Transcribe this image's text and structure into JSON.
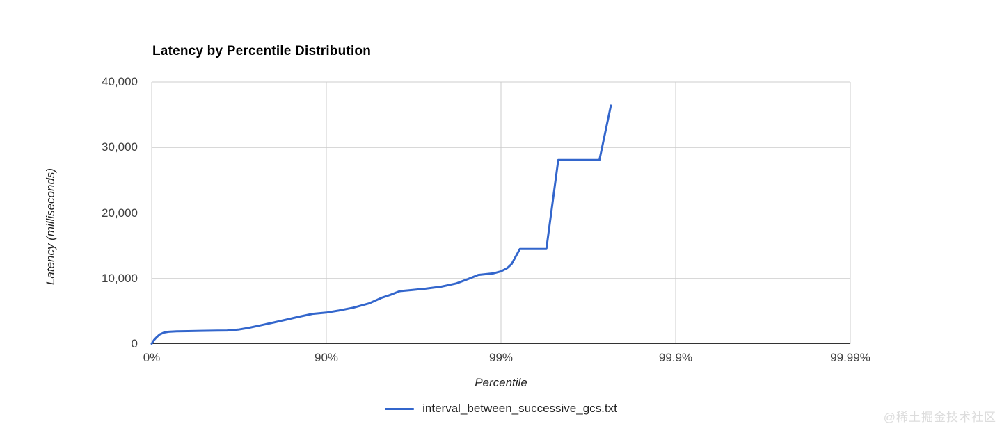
{
  "watermark": "@稀土掘金技术社区",
  "colors": {
    "background": "#ffffff",
    "gridline": "#cccccc",
    "axis_line": "#333333",
    "tick_text": "#3f3f3f",
    "series_blue": "#3366CC",
    "watermark_gray": "#dcdcdc"
  },
  "chart_data": {
    "type": "line",
    "title": "Latency by Percentile Distribution",
    "xlabel": "Percentile",
    "ylabel": "Latency (milliseconds)",
    "x_scale": "hdr-percentile-log: x = log10(1/(1-p)), 4 decades",
    "x_ticks": [
      "0%",
      "90%",
      "99%",
      "99.9%",
      "99.99%"
    ],
    "y_ticks": [
      0,
      10000,
      20000,
      30000,
      40000
    ],
    "y_tick_labels": [
      "0",
      "10,000",
      "20,000",
      "30,000",
      "40,000"
    ],
    "ylim": [
      0,
      40000
    ],
    "grid": true,
    "legend_position": "bottom",
    "series": [
      {
        "name": "interval_between_successive_gcs.txt",
        "color": "#3366CC",
        "points": [
          [
            0,
            50
          ],
          [
            3,
            600
          ],
          [
            6,
            1000
          ],
          [
            10,
            1450
          ],
          [
            15,
            1750
          ],
          [
            20,
            1870
          ],
          [
            28,
            1930
          ],
          [
            38,
            1960
          ],
          [
            48,
            2010
          ],
          [
            58,
            2040
          ],
          [
            63,
            2060
          ],
          [
            68,
            2200
          ],
          [
            72,
            2450
          ],
          [
            76,
            2830
          ],
          [
            80,
            3290
          ],
          [
            83,
            3710
          ],
          [
            85.5,
            4140
          ],
          [
            88,
            4600
          ],
          [
            90,
            4800
          ],
          [
            91.5,
            5100
          ],
          [
            93,
            5550
          ],
          [
            94.3,
            6200
          ],
          [
            95.2,
            7075
          ],
          [
            95.7,
            7500
          ],
          [
            96.2,
            8060
          ],
          [
            96.8,
            8250
          ],
          [
            97.3,
            8450
          ],
          [
            97.8,
            8750
          ],
          [
            98.2,
            9250
          ],
          [
            98.45,
            9900
          ],
          [
            98.65,
            10550
          ],
          [
            98.9,
            10800
          ],
          [
            99,
            11100
          ],
          [
            99.08,
            11600
          ],
          [
            99.13,
            12200
          ],
          [
            99.22,
            14500
          ],
          [
            99.45,
            14500
          ],
          [
            99.53,
            28100
          ],
          [
            99.727,
            28100
          ],
          [
            99.765,
            36400
          ]
        ]
      }
    ]
  }
}
